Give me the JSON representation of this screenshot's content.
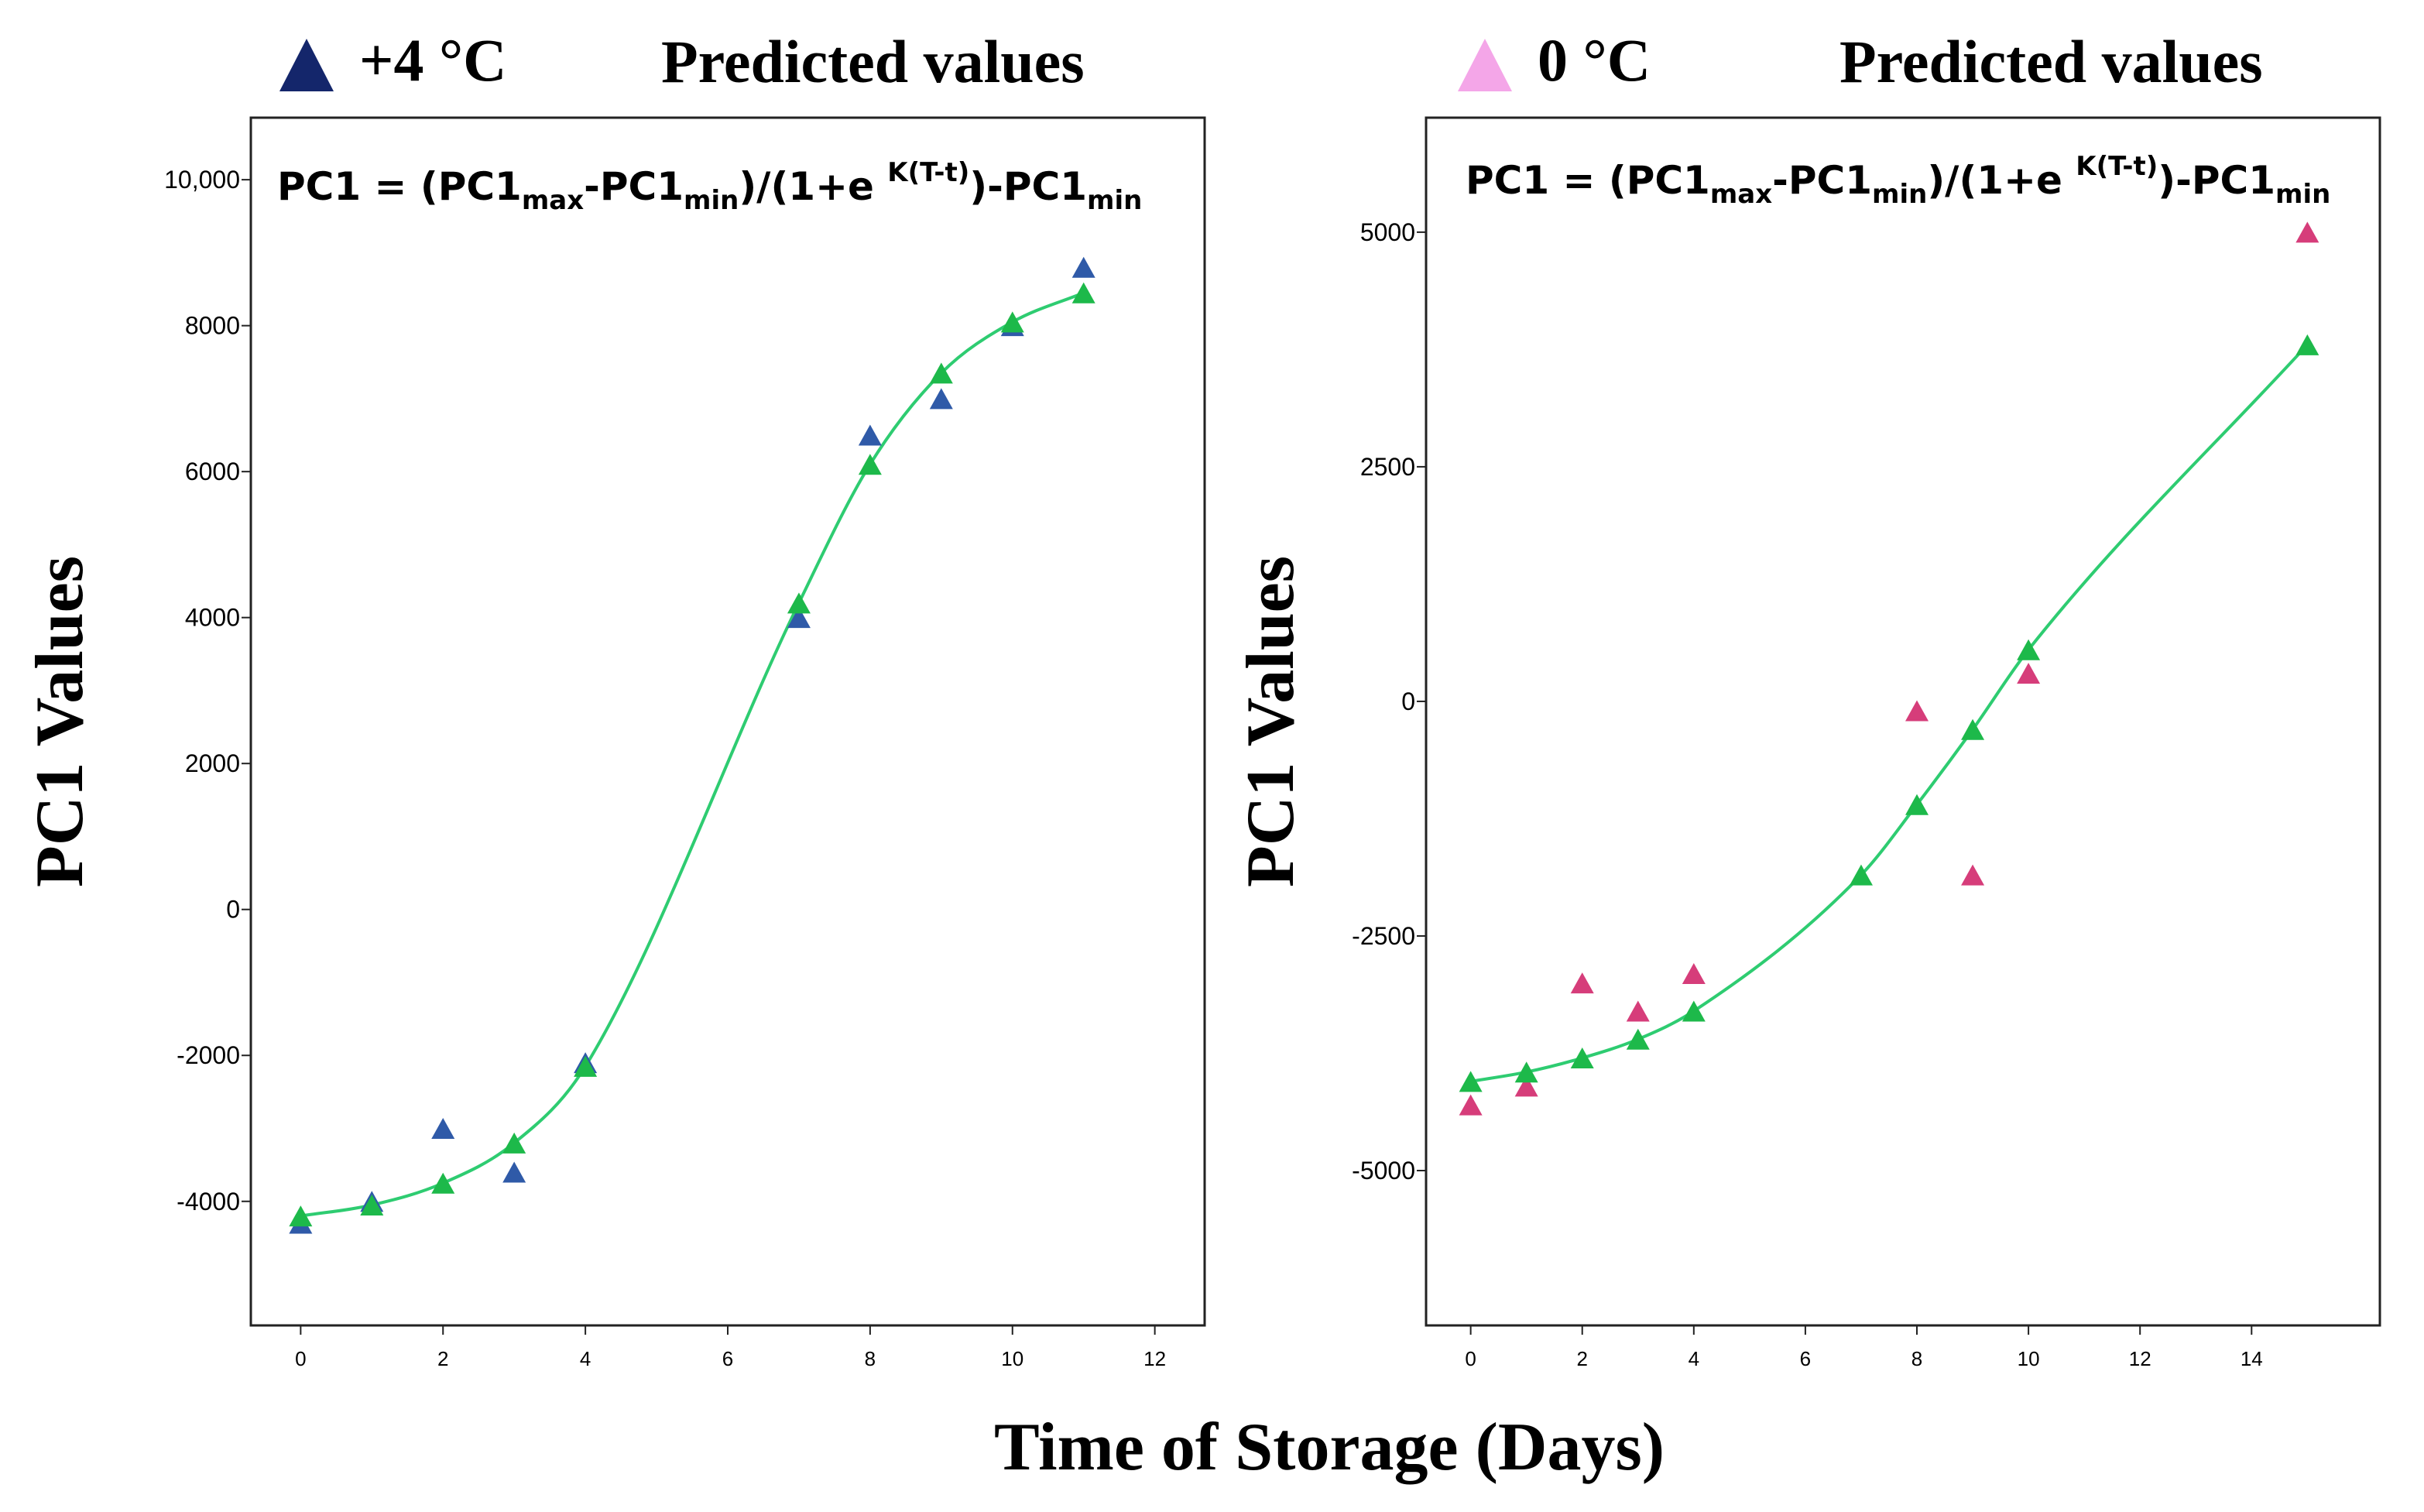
{
  "figure": {
    "xlabel": "Time of Storage (Days)",
    "equation": {
      "lhs": "PC1 = (PC1",
      "sub_max": "max",
      "minus1": "-PC1",
      "sub_min1": "min",
      "mid": ")/(1+e ",
      "sup": "K(T-t)",
      "tail": ")-PC1",
      "sub_min2": "min"
    }
  },
  "colors": {
    "predicted": "#1db94a",
    "fit_line": "#2ecc71",
    "obs_4c": "#2f5aa8",
    "obs_0c": "#d63d7a",
    "legend_4c": "#14266b",
    "legend_0c": "#f4a6e8"
  },
  "chart_data": [
    {
      "type": "scatter",
      "legend": {
        "observed_label": "+4 °C",
        "predicted_label": "Predicted values",
        "placement": "top"
      },
      "ylabel": "PC1 Values",
      "xlim": [
        -0.7,
        12.7
      ],
      "ylim": [
        -5700,
        10850
      ],
      "xticks": [
        0,
        2,
        4,
        6,
        8,
        10,
        12
      ],
      "xtick_labels": [
        "0",
        "2",
        "4",
        "6",
        "8",
        "10",
        "12"
      ],
      "yticks": [
        -4000,
        -2000,
        0,
        2000,
        4000,
        6000,
        8000,
        10000
      ],
      "ytick_labels": [
        "-4000",
        "-2000",
        "0",
        "2000",
        "4000",
        "6000",
        "8000",
        "10,000"
      ],
      "grid": false,
      "series": [
        {
          "name": "+4 °C",
          "x": [
            0,
            1,
            2,
            3,
            4,
            7,
            8,
            9,
            10,
            11
          ],
          "y": [
            -4300,
            -4000,
            -3000,
            -3600,
            -2100,
            4000,
            6500,
            7000,
            8000,
            8800
          ]
        },
        {
          "name": "Predicted values",
          "x": [
            0,
            1,
            2,
            3,
            4,
            7,
            8,
            9,
            10,
            11
          ],
          "y": [
            -4200,
            -4050,
            -3750,
            -3200,
            -2150,
            4200,
            6100,
            7350,
            8050,
            8450
          ]
        }
      ]
    },
    {
      "type": "scatter",
      "legend": {
        "observed_label": "0 °C",
        "predicted_label": "Predicted values",
        "placement": "top"
      },
      "ylabel": "PC1 Values",
      "xlim": [
        -0.8,
        16.3
      ],
      "ylim": [
        -6650,
        6220
      ],
      "xticks": [
        0,
        2,
        4,
        6,
        8,
        10,
        12,
        14
      ],
      "xtick_labels": [
        "0",
        "2",
        "4",
        "6",
        "8",
        "10",
        "12",
        "14"
      ],
      "yticks": [
        -5000,
        -2500,
        0,
        2500,
        5000
      ],
      "ytick_labels": [
        "-5000",
        "-2500",
        "0",
        "2500",
        "5000"
      ],
      "grid": false,
      "series": [
        {
          "name": "0 °C",
          "x": [
            0,
            1,
            2,
            3,
            4,
            8,
            9,
            10,
            15
          ],
          "y": [
            -4300,
            -4100,
            -3000,
            -3300,
            -2900,
            -100,
            -1850,
            300,
            5000
          ]
        },
        {
          "name": "Predicted values",
          "x": [
            0,
            1,
            2,
            3,
            4,
            7,
            8,
            9,
            10,
            15
          ],
          "y": [
            -4050,
            -3950,
            -3800,
            -3600,
            -3300,
            -1850,
            -1100,
            -300,
            550,
            3800
          ]
        }
      ]
    }
  ]
}
